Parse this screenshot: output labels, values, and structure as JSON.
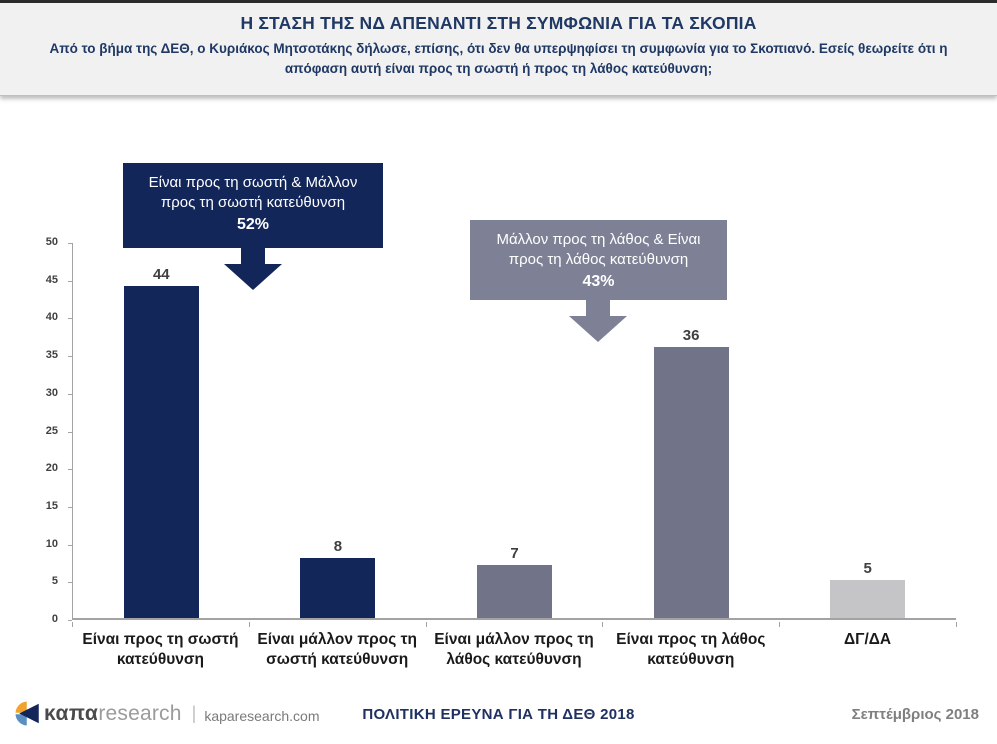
{
  "header": {
    "title": "Η ΣΤΑΣΗ ΤΗΣ ΝΔ ΑΠΕΝΑΝΤΙ ΣΤΗ ΣΥΜΦΩΝΙΑ ΓΙΑ ΤΑ ΣΚΟΠΙΑ",
    "subtitle": "Από το βήμα της ΔΕΘ, ο Κυριάκος Μητσοτάκης δήλωσε, επίσης, ότι δεν θα υπερψηφίσει τη συμφωνία για το Σκοπιανό. Εσείς θεωρείτε ότι η απόφαση αυτή είναι προς τη σωστή ή προς τη λάθος κατεύθυνση;"
  },
  "chart_data": {
    "type": "bar",
    "categories": [
      "Είναι προς τη σωστή κατεύθυνση",
      "Είναι μάλλον προς τη σωστή κατεύθυνση",
      "Είναι μάλλον προς τη λάθος κατεύθυνση",
      "Είναι προς τη λάθος κατεύθυνση",
      "ΔΓ/ΔΑ"
    ],
    "values": [
      44,
      8,
      7,
      36,
      5
    ],
    "bar_colors": [
      "#13265a",
      "#13265a",
      "#717489",
      "#717489",
      "#c5c5c7"
    ],
    "ylim": [
      0,
      50
    ],
    "yticks": [
      0,
      5,
      10,
      15,
      20,
      25,
      30,
      35,
      40,
      45,
      50
    ],
    "grid": false,
    "legend": false,
    "value_label_color": "#3f3f3f",
    "annotations": [
      {
        "line1": "Είναι προς τη σωστή & Μάλλον",
        "line2": "προς τη σωστή κατεύθυνση",
        "percent": "52%",
        "color": "#13265a"
      },
      {
        "line1": "Μάλλον προς τη λάθος & Είναι",
        "line2": "προς τη λάθος κατεύθυνση",
        "percent": "43%",
        "color": "#7e8195"
      }
    ]
  },
  "footer": {
    "logo_kapa": "καπα",
    "logo_research": "research",
    "logo_separator": "|",
    "logo_domain": "kaparesearch.com",
    "center_text": "ΠΟΛΙΤΙΚΗ ΕΡΕΥΝΑ ΓΙΑ ΤΗ ΔΕΘ 2018",
    "right_text": "Σεπτέμβριος 2018"
  },
  "colors": {
    "navy": "#13265a",
    "gray_purple": "#717489",
    "light_gray": "#c5c5c7",
    "title_navy": "#1f3864",
    "header_bg": "#f1f1f1"
  }
}
